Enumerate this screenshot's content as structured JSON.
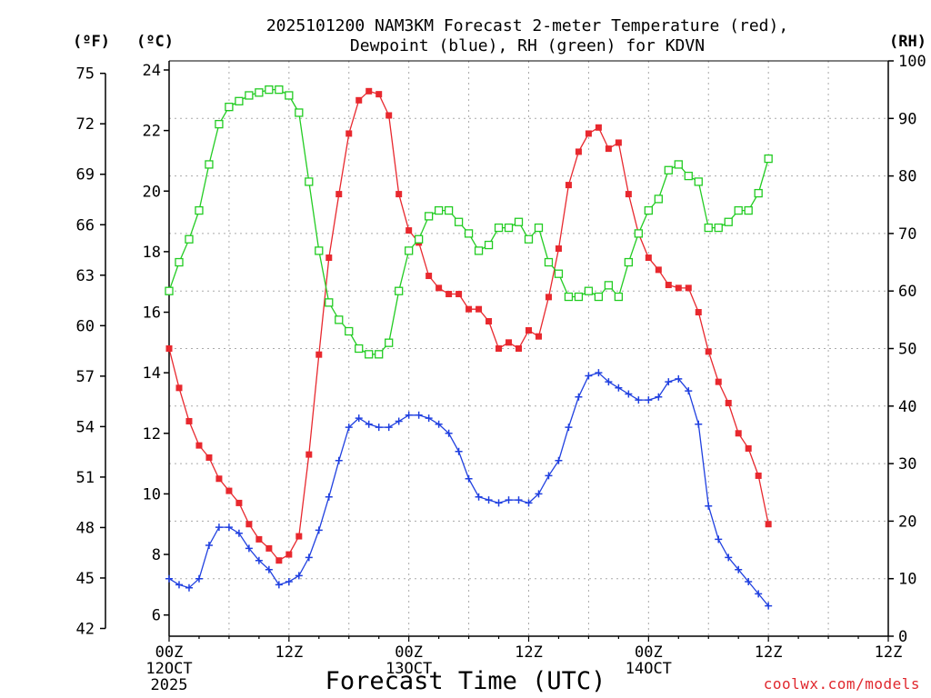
{
  "chart_data": {
    "type": "line",
    "title_line1": "2025101200 NAM3KM Forecast 2-meter Temperature (red),",
    "title_line2": "Dewpoint (blue), RH (green) for KDVN",
    "xlabel": "Forecast Time (UTC)",
    "unit_f": "(ºF)",
    "unit_c": "(ºC)",
    "unit_rh": "(RH)",
    "x_range_hours": [
      0,
      72
    ],
    "x_ticks": [
      {
        "hour": 0,
        "label": "00Z",
        "date": "12OCT",
        "year": "2025"
      },
      {
        "hour": 12,
        "label": "12Z",
        "date": "",
        "year": ""
      },
      {
        "hour": 24,
        "label": "00Z",
        "date": "13OCT",
        "year": ""
      },
      {
        "hour": 36,
        "label": "12Z",
        "date": "",
        "year": ""
      },
      {
        "hour": 48,
        "label": "00Z",
        "date": "14OCT",
        "year": ""
      },
      {
        "hour": 60,
        "label": "12Z",
        "date": "",
        "year": ""
      }
    ],
    "c_axis": {
      "min": 5.3,
      "max": 24.3,
      "ticks": [
        6,
        8,
        10,
        12,
        14,
        16,
        18,
        20,
        22,
        24
      ]
    },
    "f_axis": {
      "min": 41.54,
      "max": 75.74,
      "ticks": [
        42,
        45,
        48,
        51,
        54,
        57,
        60,
        63,
        66,
        69,
        72,
        75
      ]
    },
    "rh_axis": {
      "min": 0,
      "max": 100,
      "ticks": [
        0,
        10,
        20,
        30,
        40,
        50,
        60,
        70,
        80,
        90,
        100
      ]
    },
    "x_hours": [
      0,
      1,
      2,
      3,
      4,
      5,
      6,
      7,
      8,
      9,
      10,
      11,
      12,
      13,
      14,
      15,
      16,
      17,
      18,
      19,
      20,
      21,
      22,
      23,
      24,
      25,
      26,
      27,
      28,
      29,
      30,
      31,
      32,
      33,
      34,
      35,
      36,
      37,
      38,
      39,
      40,
      41,
      42,
      43,
      44,
      45,
      46,
      47,
      48,
      49,
      50,
      51,
      52,
      53,
      54,
      55,
      56,
      57,
      58,
      59,
      60,
      61,
      62,
      63,
      64,
      65,
      66,
      67,
      68,
      69,
      70,
      71,
      72
    ],
    "series": [
      {
        "name": "Temperature (°C)",
        "color": "#e8282e",
        "marker": "filled-square",
        "values": [
          14.8,
          13.5,
          12.4,
          11.6,
          11.2,
          10.5,
          10.1,
          9.7,
          9.0,
          8.5,
          8.2,
          7.8,
          8.0,
          8.6,
          11.3,
          14.6,
          17.8,
          19.9,
          21.9,
          23.0,
          23.3,
          23.2,
          22.5,
          19.9,
          18.7,
          18.3,
          17.2,
          16.8,
          16.6,
          16.6,
          16.1,
          16.1,
          15.7,
          14.8,
          15.0,
          14.8,
          15.4,
          15.2,
          16.5,
          18.1,
          20.2,
          21.3,
          21.9,
          22.1,
          21.4,
          21.6,
          19.9,
          18.6,
          17.8,
          17.4,
          16.9,
          16.8,
          16.8,
          16.0,
          14.7,
          13.7,
          13.0,
          12.0,
          11.5,
          10.6,
          9.0
        ]
      },
      {
        "name": "Dewpoint (°C)",
        "color": "#2040e0",
        "marker": "plus",
        "values": [
          7.2,
          7.0,
          6.9,
          7.2,
          8.3,
          8.9,
          8.9,
          8.7,
          8.2,
          7.8,
          7.5,
          7.0,
          7.1,
          7.3,
          7.9,
          8.8,
          9.9,
          11.1,
          12.2,
          12.5,
          12.3,
          12.2,
          12.2,
          12.4,
          12.6,
          12.6,
          12.5,
          12.3,
          12.0,
          11.4,
          10.5,
          9.9,
          9.8,
          9.7,
          9.8,
          9.8,
          9.7,
          10.0,
          10.6,
          11.1,
          12.2,
          13.2,
          13.9,
          14.0,
          13.7,
          13.5,
          13.3,
          13.1,
          13.1,
          13.2,
          13.7,
          13.8,
          13.4,
          12.3,
          9.6,
          8.5,
          7.9,
          7.5,
          7.1,
          6.7,
          6.3
        ]
      },
      {
        "name": "RH (%)",
        "color": "#22cc22",
        "marker": "open-square",
        "values": [
          60,
          65,
          69,
          74,
          82,
          89,
          92,
          93,
          94,
          94.5,
          95,
          95,
          94,
          91,
          79,
          67,
          58,
          55,
          53,
          50,
          49,
          49,
          51,
          60,
          67,
          69,
          73,
          74,
          74,
          72,
          70,
          67,
          68,
          71,
          71,
          72,
          69,
          71,
          65,
          63,
          59,
          59,
          60,
          59,
          61,
          59,
          65,
          70,
          74,
          76,
          81,
          82,
          80,
          79,
          71,
          71,
          72,
          74,
          74,
          77,
          83
        ]
      }
    ]
  },
  "credit": "coolwx.com/models"
}
